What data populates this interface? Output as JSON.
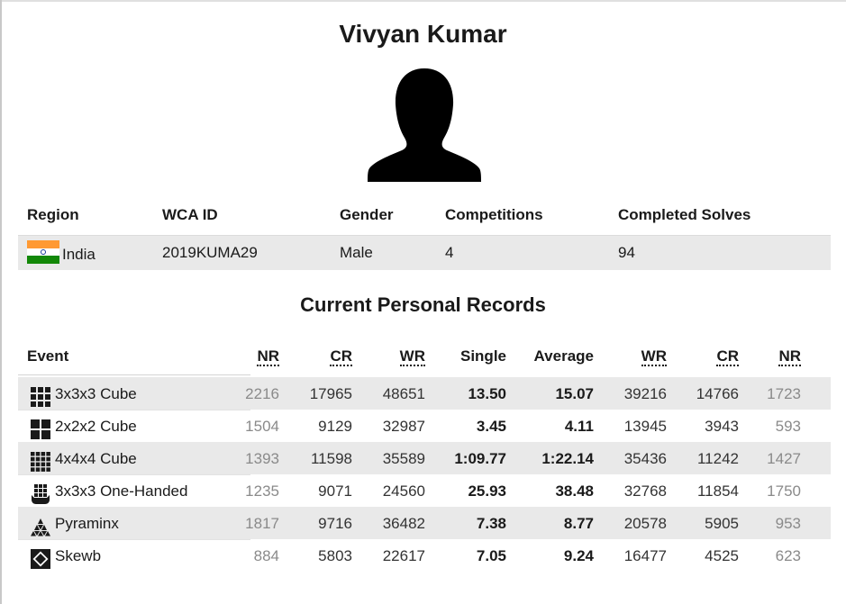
{
  "person": {
    "name": "Vivyan Kumar"
  },
  "info": {
    "headers": {
      "region": "Region",
      "wca_id": "WCA ID",
      "gender": "Gender",
      "competitions": "Competitions",
      "completed_solves": "Completed Solves"
    },
    "values": {
      "region": "India",
      "wca_id": "2019KUMA29",
      "gender": "Male",
      "competitions": "4",
      "completed_solves": "94"
    },
    "flag_colors": [
      "#ff9933",
      "#ffffff",
      "#138808"
    ]
  },
  "records": {
    "title": "Current Personal Records",
    "headers": {
      "event": "Event",
      "nr_single": "NR",
      "cr_single": "CR",
      "wr_single": "WR",
      "single": "Single",
      "average": "Average",
      "wr_average": "WR",
      "cr_average": "CR",
      "nr_average": "NR"
    },
    "rows": [
      {
        "icon": "cube-3x3-icon",
        "event": "3x3x3 Cube",
        "nr_single": "2216",
        "cr_single": "17965",
        "wr_single": "48651",
        "single": "13.50",
        "average": "15.07",
        "wr_average": "39216",
        "cr_average": "14766",
        "nr_average": "1723"
      },
      {
        "icon": "cube-2x2-icon",
        "event": "2x2x2 Cube",
        "nr_single": "1504",
        "cr_single": "9129",
        "wr_single": "32987",
        "single": "3.45",
        "average": "4.11",
        "wr_average": "13945",
        "cr_average": "3943",
        "nr_average": "593"
      },
      {
        "icon": "cube-4x4-icon",
        "event": "4x4x4 Cube",
        "nr_single": "1393",
        "cr_single": "11598",
        "wr_single": "35589",
        "single": "1:09.77",
        "average": "1:22.14",
        "wr_average": "35436",
        "cr_average": "11242",
        "nr_average": "1427"
      },
      {
        "icon": "one-handed-icon",
        "event": "3x3x3 One-Handed",
        "nr_single": "1235",
        "cr_single": "9071",
        "wr_single": "24560",
        "single": "25.93",
        "average": "38.48",
        "wr_average": "32768",
        "cr_average": "11854",
        "nr_average": "1750"
      },
      {
        "icon": "pyraminx-icon",
        "event": "Pyraminx",
        "nr_single": "1817",
        "cr_single": "9716",
        "wr_single": "36482",
        "single": "7.38",
        "average": "8.77",
        "wr_average": "20578",
        "cr_average": "5905",
        "nr_average": "953"
      },
      {
        "icon": "skewb-icon",
        "event": "Skewb",
        "nr_single": "884",
        "cr_single": "5803",
        "wr_single": "22617",
        "single": "7.05",
        "average": "9.24",
        "wr_average": "16477",
        "cr_average": "4525",
        "nr_average": "623"
      }
    ]
  }
}
